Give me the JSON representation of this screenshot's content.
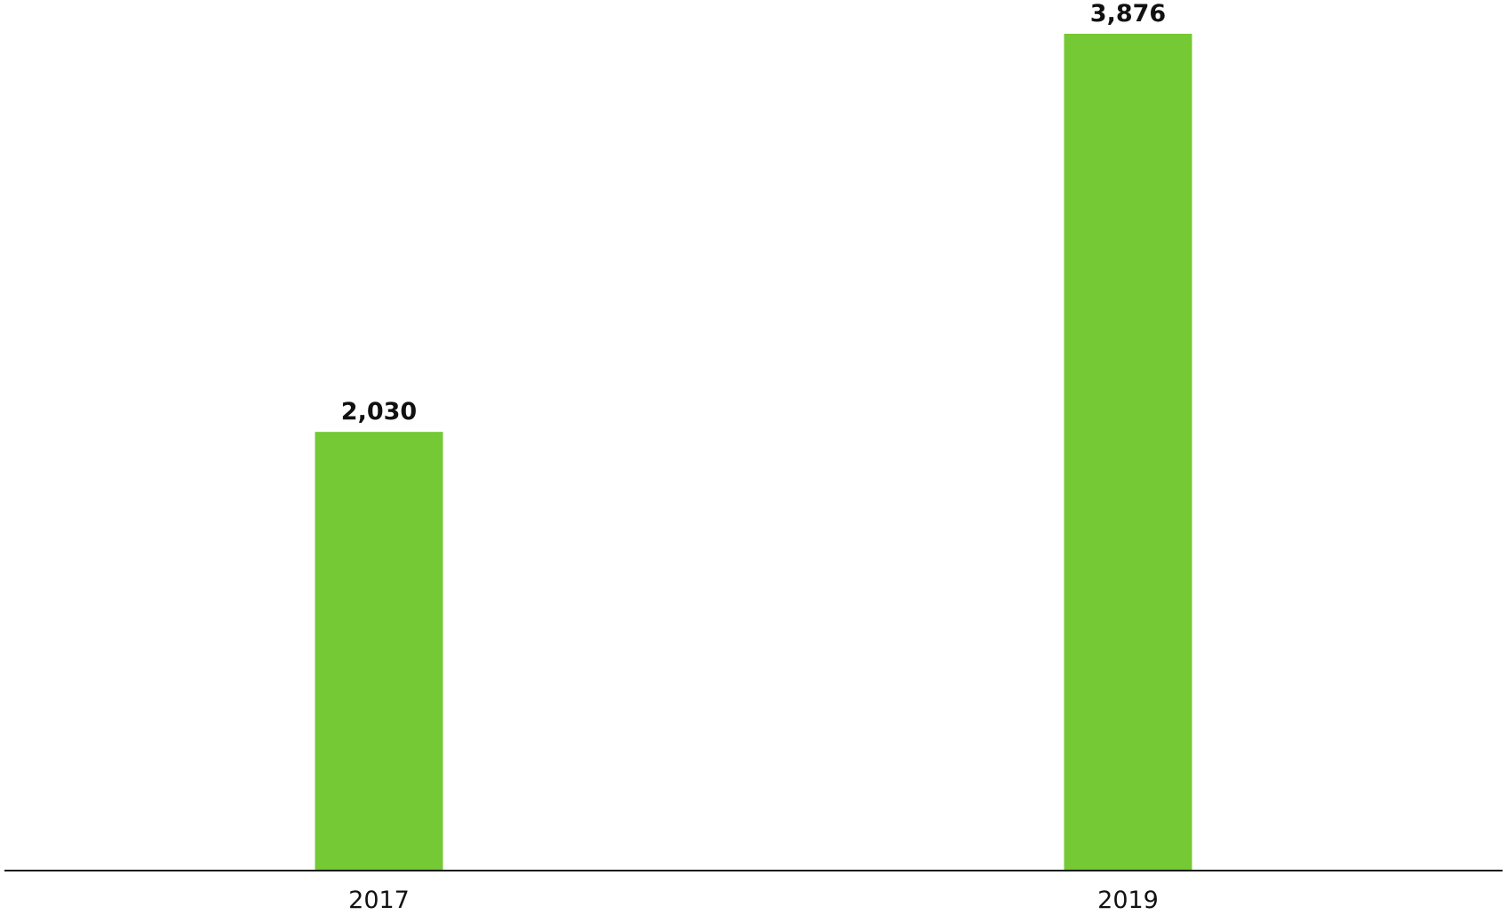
{
  "chart_data": {
    "type": "bar",
    "categories": [
      "2017",
      "2019"
    ],
    "values": [
      2030,
      3876
    ],
    "value_labels": [
      "2,030",
      "3,876"
    ],
    "color": "#74c934"
  }
}
